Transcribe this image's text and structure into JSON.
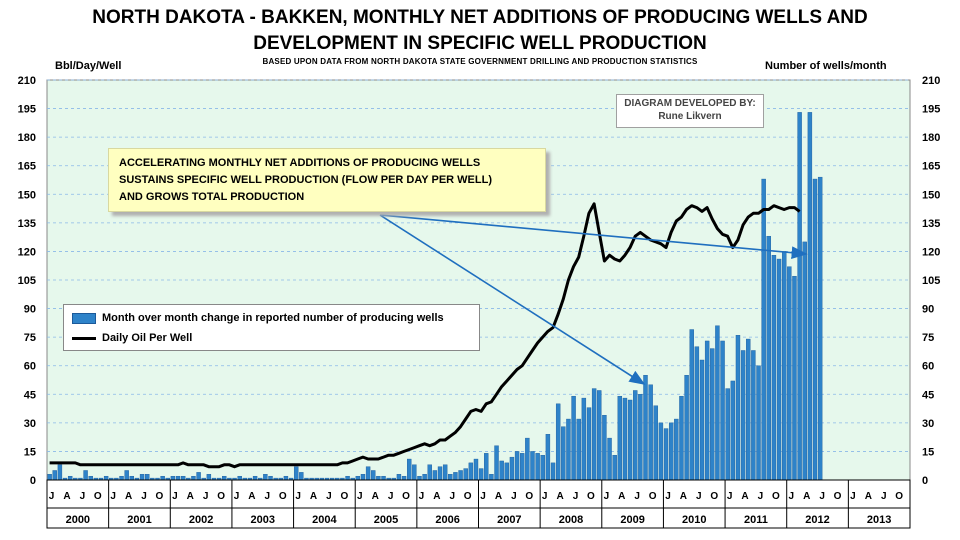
{
  "title_line1": "NORTH DAKOTA - BAKKEN, MONTHLY NET ADDITIONS OF PRODUCING WELLS AND",
  "title_line2": "DEVELOPMENT IN SPECIFIC WELL PRODUCTION",
  "subtitle": "BASED UPON DATA FROM NORTH DAKOTA STATE GOVERNMENT DRILLING AND PRODUCTION STATISTICS",
  "credit": {
    "line1": "DIAGRAM DEVELOPED BY:",
    "line2": "Rune Likvern"
  },
  "annotation": {
    "lines": [
      "ACCELERATING MONTHLY NET ADDITIONS OF PRODUCING WELLS",
      "SUSTAINS SPECIFIC WELL PRODUCTION (FLOW PER DAY PER WELL)",
      "AND GROWS TOTAL PRODUCTION"
    ]
  },
  "colors": {
    "bar": "#2e83c9",
    "bar_edge": "#1b5a9a",
    "line": "#000000",
    "plot_bg": "#e6f8ec",
    "grid": "#8ab8e8",
    "arrow": "#1f6fbf"
  },
  "chart_data": {
    "type": "bar+line",
    "ylabel": "Bbl/Day/Well",
    "y2label": "Number of wells/month",
    "ylim": [
      0,
      210
    ],
    "y2lim": [
      0,
      210
    ],
    "yticks": [
      0,
      15,
      30,
      45,
      60,
      75,
      90,
      105,
      120,
      135,
      150,
      165,
      180,
      195,
      210
    ],
    "years": [
      "2000",
      "2001",
      "2002",
      "2003",
      "2004",
      "2005",
      "2006",
      "2007",
      "2008",
      "2009",
      "2010",
      "2011",
      "2012",
      "2013"
    ],
    "month_ticks": [
      "J",
      "A",
      "J",
      "O"
    ],
    "legend": {
      "position": "middle-left",
      "entries": [
        "Month over month change in reported number of producing wells",
        "Daily Oil Per Well"
      ]
    },
    "series": [
      {
        "name": "Month over month change in reported number of producing wells",
        "axis": "right",
        "kind": "bar",
        "values": [
          3,
          5,
          8,
          1,
          2,
          1,
          1,
          5,
          2,
          1,
          1,
          2,
          1,
          1,
          2,
          5,
          2,
          1,
          3,
          3,
          1,
          1,
          2,
          1,
          2,
          2,
          2,
          1,
          2,
          4,
          1,
          3,
          1,
          1,
          2,
          1,
          1,
          2,
          1,
          1,
          2,
          1,
          3,
          2,
          1,
          1,
          2,
          1,
          7,
          4,
          1,
          1,
          1,
          1,
          1,
          1,
          1,
          1,
          2,
          1,
          2,
          3,
          7,
          5,
          2,
          2,
          1,
          1,
          3,
          2,
          11,
          8,
          2,
          3,
          8,
          5,
          7,
          8,
          3,
          4,
          5,
          6,
          9,
          11,
          6,
          14,
          3,
          18,
          10,
          9,
          12,
          15,
          14,
          22,
          15,
          14,
          13,
          24,
          9,
          40,
          28,
          32,
          44,
          32,
          43,
          38,
          48,
          47,
          34,
          22,
          13,
          44,
          43,
          42,
          47,
          45,
          55,
          50,
          39,
          30,
          27,
          30,
          32,
          44,
          55,
          79,
          70,
          63,
          73,
          69,
          81,
          73,
          48,
          52,
          76,
          68,
          74,
          68,
          60,
          158,
          128,
          118,
          116,
          120,
          112,
          107,
          193,
          125,
          193,
          158,
          159
        ]
      },
      {
        "name": "Daily Oil Per Well",
        "axis": "left",
        "kind": "line",
        "values": [
          9,
          9,
          9,
          9,
          9,
          9,
          8,
          8,
          8,
          8,
          8,
          8,
          8,
          8,
          8,
          8,
          8,
          8,
          8,
          8,
          8,
          8,
          8,
          8,
          8,
          8,
          9,
          8,
          8,
          8,
          8,
          7,
          7,
          7,
          8,
          8,
          7,
          8,
          8,
          8,
          8,
          8,
          8,
          8,
          8,
          8,
          8,
          8,
          8,
          8,
          8,
          8,
          8,
          8,
          8,
          8,
          8,
          9,
          9,
          10,
          11,
          12,
          11,
          11,
          11,
          12,
          13,
          13,
          14,
          15,
          16,
          17,
          18,
          19,
          18,
          19,
          21,
          21,
          23,
          25,
          28,
          32,
          36,
          37,
          36,
          40,
          41,
          45,
          49,
          52,
          55,
          58,
          60,
          64,
          68,
          72,
          75,
          78,
          80,
          87,
          95,
          105,
          112,
          117,
          128,
          140,
          145,
          130,
          115,
          118,
          116,
          115,
          118,
          122,
          128,
          130,
          128,
          126,
          125,
          124,
          122,
          130,
          136,
          138,
          142,
          144,
          143,
          141,
          143,
          137,
          132,
          129,
          128,
          122,
          126,
          134,
          138,
          140,
          140,
          142,
          142,
          144,
          143,
          142,
          143,
          143,
          141
        ]
      }
    ]
  }
}
